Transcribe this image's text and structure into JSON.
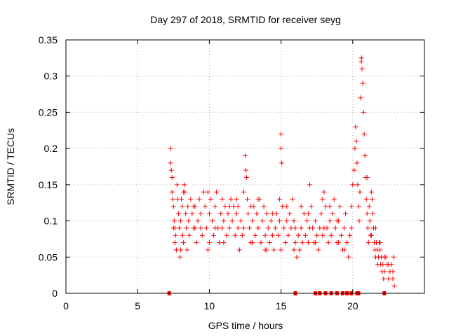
{
  "chart_data": {
    "type": "scatter",
    "title": "Day 297 of 2018, SRMTID for receiver seyg",
    "xlabel": "GPS time / hours",
    "ylabel": "SRMTID / TECUs",
    "xlim": [
      0,
      25
    ],
    "ylim": [
      0,
      0.35
    ],
    "xticks": [
      0,
      5,
      10,
      15,
      20
    ],
    "xtick_labels": [
      "0",
      "5",
      "10",
      "15",
      "20"
    ],
    "yticks": [
      0,
      0.05,
      0.1,
      0.15,
      0.2,
      0.25,
      0.3,
      0.35
    ],
    "ytick_labels": [
      "0",
      "0.05",
      "0.1",
      "0.15",
      "0.2",
      "0.25",
      "0.3",
      "0.35"
    ],
    "grid": true,
    "marker": "plus",
    "color": "#ff0000",
    "series": [
      {
        "name": "SRMTID",
        "points": [
          [
            7.3,
            0.2
          ],
          [
            7.3,
            0.18
          ],
          [
            7.35,
            0.17
          ],
          [
            7.4,
            0.16
          ],
          [
            7.4,
            0.14
          ],
          [
            7.45,
            0.13
          ],
          [
            7.5,
            0.12
          ],
          [
            7.55,
            0.1
          ],
          [
            7.6,
            0.09
          ],
          [
            7.6,
            0.07
          ],
          [
            7.65,
            0.08
          ],
          [
            7.7,
            0.06
          ],
          [
            7.75,
            0.15
          ],
          [
            7.8,
            0.13
          ],
          [
            7.85,
            0.11
          ],
          [
            7.9,
            0.09
          ],
          [
            7.95,
            0.05
          ],
          [
            8.0,
            0.1
          ],
          [
            8.05,
            0.13
          ],
          [
            8.1,
            0.12
          ],
          [
            8.15,
            0.08
          ],
          [
            8.2,
            0.07
          ],
          [
            8.25,
            0.15
          ],
          [
            8.3,
            0.14
          ],
          [
            8.35,
            0.11
          ],
          [
            8.4,
            0.09
          ],
          [
            8.45,
            0.06
          ],
          [
            8.5,
            0.12
          ],
          [
            8.55,
            0.1
          ],
          [
            8.6,
            0.08
          ],
          [
            8.7,
            0.13
          ],
          [
            8.8,
            0.11
          ],
          [
            8.9,
            0.09
          ],
          [
            9.0,
            0.12
          ],
          [
            9.1,
            0.07
          ],
          [
            9.2,
            0.1
          ],
          [
            9.3,
            0.13
          ],
          [
            9.4,
            0.11
          ],
          [
            9.5,
            0.08
          ],
          [
            9.6,
            0.14
          ],
          [
            9.7,
            0.12
          ],
          [
            9.8,
            0.09
          ],
          [
            9.9,
            0.06
          ],
          [
            10.0,
            0.11
          ],
          [
            10.1,
            0.13
          ],
          [
            10.2,
            0.1
          ],
          [
            10.3,
            0.08
          ],
          [
            10.4,
            0.12
          ],
          [
            10.5,
            0.14
          ],
          [
            10.6,
            0.09
          ],
          [
            10.7,
            0.07
          ],
          [
            10.8,
            0.11
          ],
          [
            10.9,
            0.13
          ],
          [
            11.0,
            0.1
          ],
          [
            11.1,
            0.12
          ],
          [
            11.2,
            0.08
          ],
          [
            11.3,
            0.11
          ],
          [
            11.4,
            0.09
          ],
          [
            11.5,
            0.13
          ],
          [
            11.6,
            0.1
          ],
          [
            11.7,
            0.12
          ],
          [
            11.8,
            0.08
          ],
          [
            11.9,
            0.11
          ],
          [
            12.0,
            0.09
          ],
          [
            12.1,
            0.06
          ],
          [
            12.2,
            0.1
          ],
          [
            12.3,
            0.08
          ],
          [
            12.4,
            0.14
          ],
          [
            12.5,
            0.19
          ],
          [
            12.55,
            0.17
          ],
          [
            12.6,
            0.16
          ],
          [
            12.65,
            0.13
          ],
          [
            12.7,
            0.11
          ],
          [
            12.8,
            0.09
          ],
          [
            12.9,
            0.07
          ],
          [
            13.0,
            0.1
          ],
          [
            13.1,
            0.12
          ],
          [
            13.2,
            0.08
          ],
          [
            13.3,
            0.11
          ],
          [
            13.4,
            0.09
          ],
          [
            13.5,
            0.13
          ],
          [
            13.6,
            0.07
          ],
          [
            13.7,
            0.1
          ],
          [
            13.8,
            0.12
          ],
          [
            13.9,
            0.08
          ],
          [
            14.0,
            0.11
          ],
          [
            14.1,
            0.09
          ],
          [
            14.2,
            0.07
          ],
          [
            14.3,
            0.1
          ],
          [
            14.4,
            0.08
          ],
          [
            14.5,
            0.06
          ],
          [
            14.6,
            0.09
          ],
          [
            14.7,
            0.11
          ],
          [
            14.8,
            0.08
          ],
          [
            14.9,
            0.1
          ],
          [
            15.0,
            0.22
          ],
          [
            15.0,
            0.2
          ],
          [
            15.05,
            0.18
          ],
          [
            15.1,
            0.12
          ],
          [
            15.2,
            0.09
          ],
          [
            15.3,
            0.07
          ],
          [
            15.4,
            0.1
          ],
          [
            15.5,
            0.08
          ],
          [
            15.6,
            0.11
          ],
          [
            15.7,
            0.09
          ],
          [
            15.8,
            0.13
          ],
          [
            15.9,
            0.1
          ],
          [
            16.0,
            0.07
          ],
          [
            16.1,
            0.05
          ],
          [
            16.2,
            0.08
          ],
          [
            16.3,
            0.06
          ],
          [
            16.4,
            0.09
          ],
          [
            16.5,
            0.07
          ],
          [
            16.6,
            0.11
          ],
          [
            16.7,
            0.08
          ],
          [
            16.8,
            0.1
          ],
          [
            16.9,
            0.07
          ],
          [
            17.0,
            0.15
          ],
          [
            17.1,
            0.12
          ],
          [
            17.2,
            0.09
          ],
          [
            17.3,
            0.07
          ],
          [
            17.4,
            0.1
          ],
          [
            17.5,
            0.08
          ],
          [
            17.6,
            0.06
          ],
          [
            17.7,
            0.09
          ],
          [
            17.8,
            0.11
          ],
          [
            17.9,
            0.08
          ],
          [
            18.0,
            0.14
          ],
          [
            18.1,
            0.12
          ],
          [
            18.2,
            0.09
          ],
          [
            18.3,
            0.07
          ],
          [
            18.4,
            0.1
          ],
          [
            18.5,
            0.08
          ],
          [
            18.6,
            0.11
          ],
          [
            18.7,
            0.13
          ],
          [
            18.8,
            0.09
          ],
          [
            18.9,
            0.07
          ],
          [
            19.0,
            0.1
          ],
          [
            19.1,
            0.12
          ],
          [
            19.2,
            0.08
          ],
          [
            19.3,
            0.06
          ],
          [
            19.4,
            0.09
          ],
          [
            19.5,
            0.11
          ],
          [
            19.6,
            0.07
          ],
          [
            19.7,
            0.05
          ],
          [
            19.8,
            0.08
          ],
          [
            19.9,
            0.12
          ],
          [
            20.0,
            0.15
          ],
          [
            20.1,
            0.17
          ],
          [
            20.15,
            0.2
          ],
          [
            20.2,
            0.23
          ],
          [
            20.25,
            0.21
          ],
          [
            20.3,
            0.18
          ],
          [
            20.35,
            0.15
          ],
          [
            20.4,
            0.12
          ],
          [
            20.45,
            0.1
          ],
          [
            20.5,
            0.14
          ],
          [
            20.55,
            0.27
          ],
          [
            20.6,
            0.32
          ],
          [
            20.62,
            0.325
          ],
          [
            20.65,
            0.31
          ],
          [
            20.7,
            0.29
          ],
          [
            20.75,
            0.25
          ],
          [
            20.8,
            0.22
          ],
          [
            20.85,
            0.19
          ],
          [
            20.9,
            0.16
          ],
          [
            20.95,
            0.13
          ],
          [
            21.0,
            0.11
          ],
          [
            21.05,
            0.09
          ],
          [
            21.1,
            0.07
          ],
          [
            21.15,
            0.12
          ],
          [
            21.2,
            0.1
          ],
          [
            21.25,
            0.08
          ],
          [
            21.3,
            0.14
          ],
          [
            21.35,
            0.13
          ],
          [
            21.4,
            0.11
          ],
          [
            21.45,
            0.09
          ],
          [
            21.5,
            0.07
          ],
          [
            21.55,
            0.06
          ],
          [
            21.6,
            0.05
          ],
          [
            21.65,
            0.07
          ],
          [
            21.7,
            0.06
          ],
          [
            21.75,
            0.04
          ],
          [
            21.8,
            0.05
          ],
          [
            21.85,
            0.07
          ],
          [
            21.9,
            0.06
          ],
          [
            21.95,
            0.04
          ],
          [
            22.0,
            0.05
          ],
          [
            22.05,
            0.03
          ],
          [
            22.1,
            0.04
          ],
          [
            22.15,
            0.02
          ],
          [
            22.2,
            0.03
          ],
          [
            22.3,
            0.05
          ],
          [
            22.4,
            0.04
          ],
          [
            22.5,
            0.02
          ],
          [
            22.6,
            0.03
          ],
          [
            22.7,
            0.04
          ],
          [
            22.8,
            0.02
          ],
          [
            22.85,
            0.05
          ],
          [
            22.9,
            0.01
          ],
          [
            7.5,
            0.09
          ],
          [
            8.2,
            0.14
          ],
          [
            8.9,
            0.12
          ],
          [
            9.4,
            0.09
          ],
          [
            9.9,
            0.14
          ],
          [
            10.4,
            0.09
          ],
          [
            10.9,
            0.09
          ],
          [
            11.4,
            0.12
          ],
          [
            11.9,
            0.13
          ],
          [
            12.4,
            0.09
          ],
          [
            12.9,
            0.12
          ],
          [
            13.4,
            0.13
          ],
          [
            13.9,
            0.06
          ],
          [
            14.4,
            0.11
          ],
          [
            14.9,
            0.13
          ],
          [
            15.4,
            0.12
          ],
          [
            15.9,
            0.06
          ],
          [
            16.4,
            0.12
          ],
          [
            16.9,
            0.11
          ],
          [
            17.4,
            0.07
          ],
          [
            17.9,
            0.13
          ],
          [
            18.4,
            0.12
          ],
          [
            18.9,
            0.1
          ],
          [
            19.4,
            0.06
          ],
          [
            19.9,
            0.09
          ],
          [
            8.0,
            0.06
          ],
          [
            9.0,
            0.09
          ],
          [
            10.0,
            0.07
          ],
          [
            11.0,
            0.07
          ],
          [
            12.0,
            0.12
          ],
          [
            13.0,
            0.07
          ],
          [
            14.0,
            0.06
          ],
          [
            15.0,
            0.06
          ],
          [
            16.0,
            0.09
          ],
          [
            17.0,
            0.09
          ],
          [
            18.0,
            0.09
          ],
          [
            19.0,
            0.07
          ],
          [
            21.0,
            0.16
          ],
          [
            21.3,
            0.08
          ],
          [
            21.6,
            0.09
          ],
          [
            21.9,
            0.07
          ],
          [
            22.2,
            0.05
          ],
          [
            22.5,
            0.04
          ],
          [
            22.8,
            0.03
          ]
        ]
      },
      {
        "name": "zero-value markers",
        "marker": "square",
        "points": [
          [
            7.2,
            0
          ],
          [
            16.0,
            0
          ],
          [
            17.4,
            0
          ],
          [
            17.7,
            0
          ],
          [
            18.1,
            0
          ],
          [
            18.5,
            0
          ],
          [
            18.9,
            0
          ],
          [
            19.3,
            0
          ],
          [
            19.6,
            0
          ],
          [
            19.9,
            0
          ],
          [
            20.3,
            0
          ],
          [
            20.4,
            0
          ],
          [
            22.2,
            0
          ]
        ]
      }
    ]
  }
}
